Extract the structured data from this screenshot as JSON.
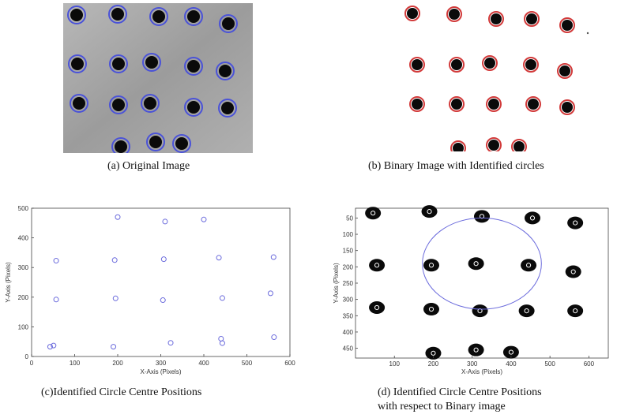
{
  "captions": {
    "a": "(a) Original Image",
    "b": "(b) Binary Image with Identified circles",
    "c": "(c)Identified Circle Centre Positions",
    "d_line1": "(d) Identified Circle Centre Positions",
    "d_line2": "with respect to Binary image"
  },
  "colors": {
    "photo_bg": "#a4a4a4",
    "blob": "#0a0a0a",
    "blue_outline": "#4a52d8",
    "red_outline": "#d23a3a",
    "marker": "#6a6adc"
  },
  "chart_data": [
    {
      "type": "scatter",
      "panel": "c",
      "xlabel": "X-Axis (Pixels)",
      "ylabel": "Y-Axis (Pixels)",
      "xlim": [
        0,
        600
      ],
      "ylim": [
        0,
        500
      ],
      "xticks": [
        0,
        100,
        200,
        300,
        400,
        500,
        600
      ],
      "yticks": [
        0,
        100,
        200,
        300,
        400,
        500
      ],
      "points": [
        {
          "x": 200,
          "y": 470
        },
        {
          "x": 310,
          "y": 455
        },
        {
          "x": 400,
          "y": 462
        },
        {
          "x": 57,
          "y": 323
        },
        {
          "x": 193,
          "y": 325
        },
        {
          "x": 307,
          "y": 328
        },
        {
          "x": 435,
          "y": 333
        },
        {
          "x": 562,
          "y": 335
        },
        {
          "x": 57,
          "y": 192
        },
        {
          "x": 195,
          "y": 196
        },
        {
          "x": 305,
          "y": 190
        },
        {
          "x": 443,
          "y": 197
        },
        {
          "x": 555,
          "y": 213
        },
        {
          "x": 43,
          "y": 33
        },
        {
          "x": 51,
          "y": 37
        },
        {
          "x": 190,
          "y": 33
        },
        {
          "x": 323,
          "y": 46
        },
        {
          "x": 440,
          "y": 60
        },
        {
          "x": 443,
          "y": 45
        },
        {
          "x": 563,
          "y": 65
        }
      ]
    },
    {
      "type": "scatter",
      "panel": "d",
      "xlabel": "X-Axis (Pixels)",
      "ylabel": "Y-Axis (Pixels)",
      "xlim": [
        0,
        650
      ],
      "ylim": [
        480,
        20
      ],
      "xticks": [
        100,
        200,
        300,
        400,
        500,
        600
      ],
      "yticks": [
        50,
        100,
        150,
        200,
        250,
        300,
        350,
        400,
        450
      ],
      "blobs": [
        {
          "x": 45,
          "y": 35
        },
        {
          "x": 190,
          "y": 30
        },
        {
          "x": 325,
          "y": 45
        },
        {
          "x": 455,
          "y": 50
        },
        {
          "x": 565,
          "y": 65
        },
        {
          "x": 55,
          "y": 195
        },
        {
          "x": 195,
          "y": 195
        },
        {
          "x": 310,
          "y": 190
        },
        {
          "x": 445,
          "y": 195
        },
        {
          "x": 560,
          "y": 215
        },
        {
          "x": 55,
          "y": 325
        },
        {
          "x": 195,
          "y": 330
        },
        {
          "x": 320,
          "y": 335
        },
        {
          "x": 440,
          "y": 335
        },
        {
          "x": 565,
          "y": 335
        },
        {
          "x": 200,
          "y": 465
        },
        {
          "x": 310,
          "y": 455
        },
        {
          "x": 400,
          "y": 462
        }
      ],
      "ellipse": {
        "cx": 325,
        "cy": 190,
        "rx": 153,
        "ry": 140
      }
    }
  ]
}
